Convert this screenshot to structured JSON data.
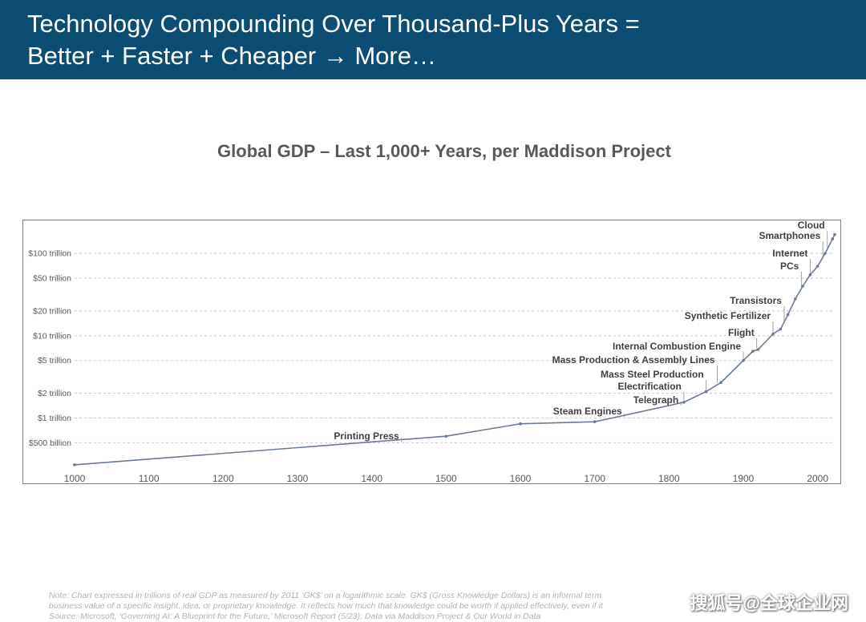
{
  "header": {
    "title_line1": "Technology Compounding Over Thousand-Plus Years =",
    "title_line2": "Better + Faster + Cheaper → More…"
  },
  "chart_data": {
    "type": "line",
    "title": "Global GDP – Last 1,000+ Years, per Maddison Project",
    "xlabel": "",
    "ylabel": "",
    "y_scale": "log",
    "xlim": [
      1000,
      2023
    ],
    "ylim": [
      0.23,
      220
    ],
    "x_ticks": [
      1000,
      1100,
      1200,
      1300,
      1400,
      1500,
      1600,
      1700,
      1800,
      1900,
      2000
    ],
    "y_ticks": [
      {
        "value": 0.5,
        "label": "$500 billion"
      },
      {
        "value": 1,
        "label": "$1 trillion"
      },
      {
        "value": 2,
        "label": "$2 trillion"
      },
      {
        "value": 5,
        "label": "$5 trillion"
      },
      {
        "value": 10,
        "label": "$10 trillion"
      },
      {
        "value": 20,
        "label": "$20 trillion"
      },
      {
        "value": 50,
        "label": "$50 trillion"
      },
      {
        "value": 100,
        "label": "$100 trillion"
      }
    ],
    "series": [
      {
        "name": "Global GDP (trillions, GK$)",
        "color": "#6b7b95",
        "x": [
          1000,
          1500,
          1600,
          1700,
          1820,
          1850,
          1870,
          1900,
          1913,
          1920,
          1940,
          1950,
          1960,
          1970,
          1980,
          1990,
          2000,
          2010,
          2020,
          2023
        ],
        "values": [
          0.27,
          0.6,
          0.85,
          0.9,
          1.55,
          2.1,
          2.7,
          5.0,
          6.5,
          6.8,
          10.5,
          12.0,
          18.0,
          28.0,
          40.0,
          55.0,
          70.0,
          100.0,
          150.0,
          170.0
        ]
      }
    ],
    "annotations": [
      {
        "label": "Printing Press",
        "x": 1440
      },
      {
        "label": "Steam Engines",
        "x": 1740
      },
      {
        "label": "Telegraph",
        "x": 1816
      },
      {
        "label": "Electrification",
        "x": 1820
      },
      {
        "label": "Mass Steel Production",
        "x": 1850
      },
      {
        "label": "Mass Production & Assembly Lines",
        "x": 1865
      },
      {
        "label": "Internal Combustion Engine",
        "x": 1900
      },
      {
        "label": "Flight",
        "x": 1918
      },
      {
        "label": "Synthetic Fertilizer",
        "x": 1940
      },
      {
        "label": "Transistors",
        "x": 1955
      },
      {
        "label": "PCs",
        "x": 1978
      },
      {
        "label": "Internet",
        "x": 1990
      },
      {
        "label": "Smartphones",
        "x": 2007
      },
      {
        "label": "Cloud",
        "x": 2013
      }
    ]
  },
  "footnote": {
    "line1": "Note: Chart expressed in trillions of real GDP as measured by 2011 ‘GK$’ on a logarithmic scale. GK$ (Gross Knowledge Dollars) is an informal term",
    "line2": "business value of a specific insight, idea, or proprietary knowledge. It reflects how much that knowledge could be worth if applied effectively, even if it",
    "line3": "Source: Microsoft, ‘Governing AI: A Blueprint for the Future,’ Microsoft Report (5/23); Data via Maddison Project & Our World in Data"
  },
  "watermark": {
    "text": "搜狐号@全球企业网"
  }
}
